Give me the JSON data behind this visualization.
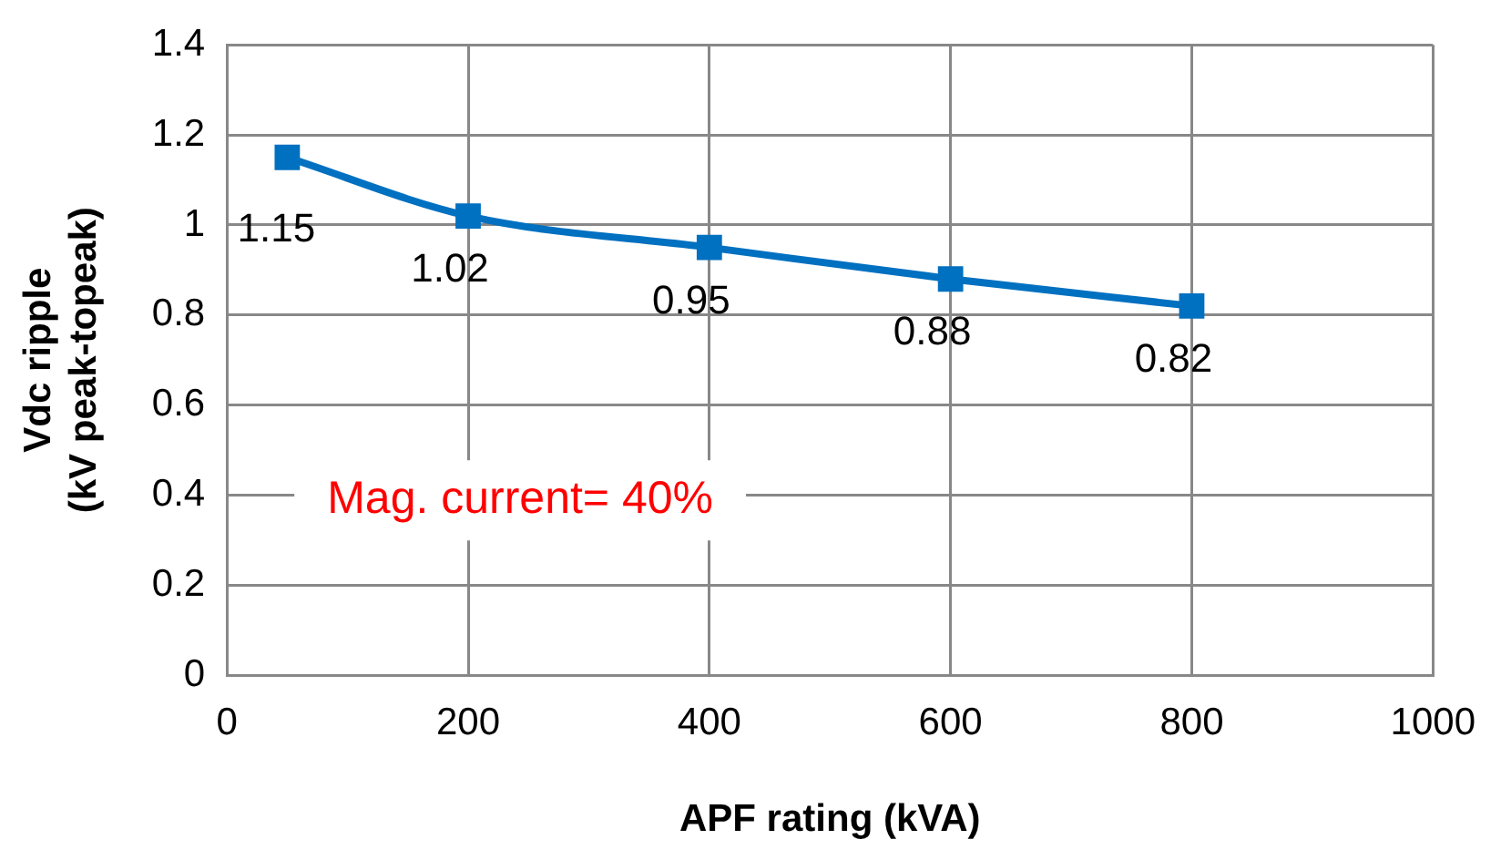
{
  "chart_data": {
    "type": "line",
    "xlabel": "APF rating (kVA)",
    "ylabel": "Vdc ripple\n(kV peak-topeak)",
    "x": [
      50,
      200,
      400,
      600,
      800
    ],
    "series": [
      {
        "color": "#0070c0",
        "values": [
          1.15,
          1.02,
          0.95,
          0.88,
          0.82
        ]
      }
    ],
    "xlim": [
      0,
      1000
    ],
    "xticks": [
      0,
      200,
      400,
      600,
      800,
      1000
    ],
    "ylim": [
      0,
      1.4
    ],
    "yticks": [
      0,
      0.2,
      0.4,
      0.6,
      0.8,
      1,
      1.2,
      1.4
    ],
    "grid": true,
    "legend": false,
    "marker": "square",
    "line_style": "solid",
    "data_labels": true,
    "annotations": [
      "Mag. current= 40%"
    ]
  }
}
